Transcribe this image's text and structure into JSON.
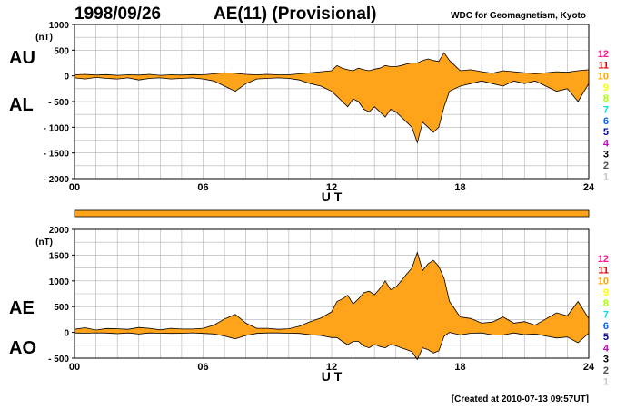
{
  "header": {
    "date": "1998/09/26",
    "title": "AE(11) (Provisional)",
    "source": "WDC for Geomagnetism, Kyoto"
  },
  "footer": {
    "created": "[Created at 2010-07-13 09:57UT]"
  },
  "colors": {
    "fill": "#ffa31a",
    "line": "#000000",
    "grid": "#b0b0b0",
    "bar": "#ffa31a"
  },
  "station_numbers": {
    "labels": [
      "12",
      "11",
      "10",
      "9",
      "8",
      "7",
      "6",
      "5",
      "4",
      "3",
      "2",
      "1"
    ],
    "colors": [
      "#ff1493",
      "#e00000",
      "#ffa500",
      "#ffff00",
      "#aaff00",
      "#00e0e0",
      "#0060ff",
      "#0000a0",
      "#cc00cc",
      "#000000",
      "#505050",
      "#c8c8c8"
    ]
  },
  "chart_data": [
    {
      "type": "area",
      "name": "AU/AL",
      "labels": {
        "upper": "AU",
        "lower": "AL"
      },
      "unit": "(nT)",
      "xlabel": "U T",
      "x_ticks": [
        "00",
        "06",
        "12",
        "18",
        "24"
      ],
      "xlim": [
        0,
        24
      ],
      "ylim": [
        -2000,
        1000
      ],
      "y_ticks": [
        "1000",
        "500",
        "0",
        "- 500",
        "- 1000",
        "- 1500",
        "- 2000"
      ],
      "y_tick_values": [
        1000,
        500,
        0,
        -500,
        -1000,
        -1500,
        -2000
      ],
      "grid": true,
      "x": [
        0,
        0.5,
        1,
        1.5,
        2,
        2.5,
        3,
        3.5,
        4,
        4.5,
        5,
        5.5,
        6,
        6.5,
        7,
        7.5,
        8,
        8.5,
        9,
        9.5,
        10,
        10.5,
        11,
        11.5,
        12,
        12.25,
        12.5,
        12.75,
        13,
        13.25,
        13.5,
        13.75,
        14,
        14.25,
        14.5,
        14.75,
        15,
        15.25,
        15.5,
        15.75,
        16,
        16.25,
        16.5,
        16.75,
        17,
        17.25,
        17.5,
        17.75,
        18,
        18.5,
        19,
        19.5,
        20,
        20.5,
        21,
        21.5,
        22,
        22.5,
        23,
        23.5,
        24
      ],
      "series": [
        {
          "name": "AU",
          "values": [
            20,
            30,
            15,
            25,
            10,
            20,
            15,
            30,
            10,
            20,
            15,
            25,
            20,
            40,
            60,
            50,
            30,
            20,
            30,
            20,
            20,
            40,
            60,
            80,
            100,
            200,
            150,
            120,
            100,
            150,
            120,
            100,
            130,
            150,
            200,
            180,
            180,
            200,
            230,
            250,
            250,
            300,
            330,
            300,
            280,
            450,
            300,
            200,
            100,
            120,
            80,
            50,
            100,
            80,
            60,
            40,
            60,
            80,
            70,
            100,
            120
          ]
        },
        {
          "name": "AL",
          "values": [
            -40,
            -60,
            -30,
            -50,
            -60,
            -40,
            -80,
            -50,
            -40,
            -60,
            -50,
            -40,
            -60,
            -100,
            -200,
            -300,
            -150,
            -60,
            -50,
            -40,
            -50,
            -80,
            -150,
            -200,
            -300,
            -400,
            -500,
            -600,
            -450,
            -500,
            -650,
            -700,
            -600,
            -700,
            -800,
            -650,
            -700,
            -800,
            -900,
            -1000,
            -1300,
            -900,
            -1000,
            -1100,
            -1000,
            -600,
            -300,
            -250,
            -200,
            -150,
            -100,
            -150,
            -200,
            -100,
            -150,
            -100,
            -200,
            -300,
            -250,
            -500,
            -150
          ]
        }
      ]
    },
    {
      "type": "area",
      "name": "AE/AO",
      "labels": {
        "upper": "AE",
        "lower": "AO"
      },
      "unit": "(nT)",
      "xlabel": "U T",
      "x_ticks": [
        "00",
        "06",
        "12",
        "18",
        "24"
      ],
      "xlim": [
        0,
        24
      ],
      "ylim": [
        -500,
        2000
      ],
      "y_ticks": [
        "2000",
        "1500",
        "1000",
        "500",
        "0",
        "- 500"
      ],
      "y_tick_values": [
        2000,
        1500,
        1000,
        500,
        0,
        -500
      ],
      "grid": true,
      "x": [
        0,
        0.5,
        1,
        1.5,
        2,
        2.5,
        3,
        3.5,
        4,
        4.5,
        5,
        5.5,
        6,
        6.5,
        7,
        7.5,
        8,
        8.5,
        9,
        9.5,
        10,
        10.5,
        11,
        11.5,
        12,
        12.25,
        12.5,
        12.75,
        13,
        13.25,
        13.5,
        13.75,
        14,
        14.25,
        14.5,
        14.75,
        15,
        15.25,
        15.5,
        15.75,
        16,
        16.25,
        16.5,
        16.75,
        17,
        17.25,
        17.5,
        17.75,
        18,
        18.5,
        19,
        19.5,
        20,
        20.5,
        21,
        21.5,
        22,
        22.5,
        23,
        23.5,
        24
      ],
      "series": [
        {
          "name": "AE",
          "values": [
            60,
            90,
            45,
            75,
            70,
            60,
            95,
            80,
            50,
            80,
            65,
            65,
            80,
            140,
            260,
            350,
            180,
            80,
            80,
            60,
            70,
            120,
            210,
            280,
            400,
            600,
            650,
            720,
            550,
            650,
            770,
            800,
            730,
            850,
            1000,
            830,
            880,
            1000,
            1130,
            1250,
            1550,
            1200,
            1330,
            1400,
            1280,
            1050,
            600,
            450,
            300,
            270,
            180,
            200,
            300,
            180,
            210,
            140,
            260,
            380,
            320,
            600,
            270
          ]
        },
        {
          "name": "AO",
          "values": [
            -10,
            -15,
            -8,
            -12,
            -25,
            -10,
            -32,
            -10,
            -15,
            -20,
            -18,
            -8,
            -20,
            -30,
            -70,
            -125,
            -60,
            -20,
            -10,
            -10,
            -15,
            -20,
            -45,
            -60,
            -100,
            -100,
            -175,
            -240,
            -175,
            -175,
            -265,
            -300,
            -235,
            -275,
            -300,
            -235,
            -260,
            -300,
            -335,
            -375,
            -525,
            -300,
            -335,
            -400,
            -360,
            -75,
            0,
            -25,
            -50,
            -15,
            -10,
            -50,
            -50,
            -10,
            -45,
            -30,
            -70,
            -110,
            -90,
            -200,
            -15
          ]
        }
      ]
    }
  ]
}
